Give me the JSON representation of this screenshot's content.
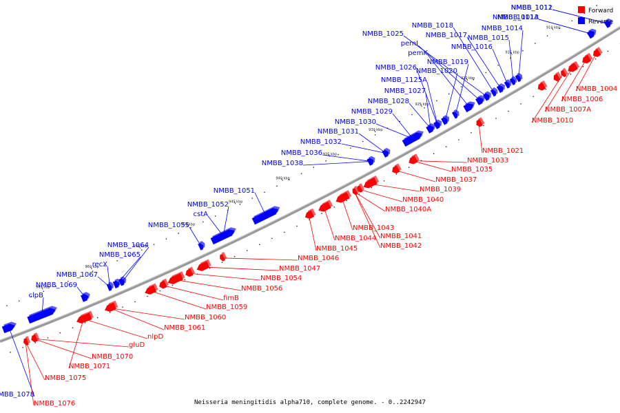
{
  "caption": "Neisseria meningitidis alpha710, complete genome. - 0..2242947",
  "legend": {
    "forward": "Forward",
    "reverse": "Reverse"
  },
  "colors": {
    "forward": "#ff0000",
    "reverse": "#0000ff",
    "backbone": "#808080"
  },
  "ticks": [
    "910 kbp",
    "915 kbp",
    "920 kbp",
    "925 kbp",
    "930 kbp",
    "935 kbp",
    "940 kbp",
    "945 kbp",
    "950 kbp",
    "955 kbp",
    "960 kbp",
    "965 kbp"
  ],
  "reverse_genes": [
    "NMBB_1012",
    "NMBB_1013",
    "NMBB_1014",
    "NMBB_1015",
    "NMBB_1016",
    "NMBB_1017",
    "NMBB_1018",
    "NMBB_1025",
    "pemI",
    "pemK",
    "NMBB_1019",
    "NMBB_1020",
    "NMBB_1026",
    "NMBB_1125A",
    "NMBB_1027",
    "NMBB_1028",
    "NMBB_1029",
    "NMBB_1030",
    "NMBB_1031",
    "NMBB_1032",
    "NMBB_1036",
    "NMBB_1038",
    "NMBB_1051",
    "NMBB_1052",
    "cstA",
    "NMBB_1055",
    "NMBB_1064",
    "NMBB_1065",
    "recX",
    "NMBB_1067",
    "NMBB_1069",
    "clpB",
    "NMBB_1078",
    "NMBB_1011",
    "NMBB_1011A"
  ],
  "forward_genes": [
    "NMBB_1004",
    "NMBB_1006",
    "NMBB_1007A",
    "NMBB_1010",
    "NMBB_1021",
    "NMBB_1033",
    "NMBB_1035",
    "NMBB_1037",
    "NMBB_1039",
    "NMBB_1040",
    "NMBB_1040A",
    "NMBB_1043",
    "NMBB_1041",
    "NMBB_1042",
    "NMBB_1044",
    "NMBB_1045",
    "NMBB_1046",
    "NMBB_1047",
    "NMBB_1054",
    "NMBB_1056",
    "fimB",
    "NMBB_1059",
    "NMBB_1060",
    "NMBB_1061",
    "nlpD",
    "gluD",
    "NMBB_1070",
    "NMBB_1071",
    "NMBB_1075",
    "NMBB_1076"
  ]
}
